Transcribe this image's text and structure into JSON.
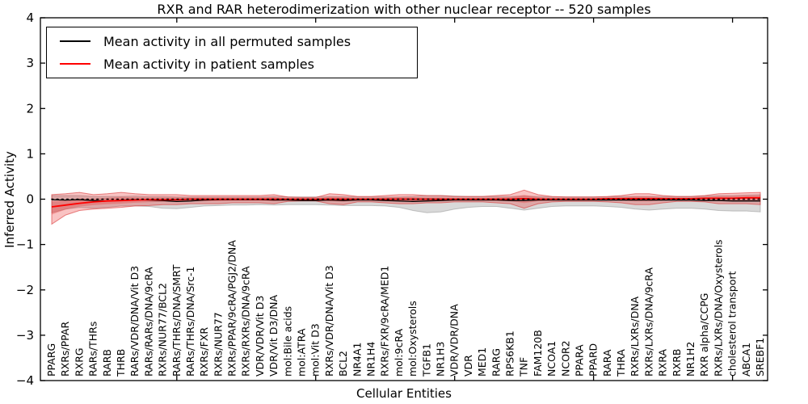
{
  "chart_data": {
    "type": "line",
    "title": "RXR and RAR heterodimerization with other nuclear receptor -- 520 samples",
    "xlabel": "Cellular Entities",
    "ylabel": "Inferred Activity",
    "ylim": [
      -4,
      4
    ],
    "ytick_labels": [
      "4",
      "3",
      "2",
      "1",
      "0",
      "−1",
      "−2",
      "−3",
      "−4"
    ],
    "xtick_positions": [
      10,
      20,
      30,
      40,
      50
    ],
    "grid": false,
    "legend_position": "upper left",
    "legend": [
      {
        "label": "Mean activity in all permuted samples",
        "color": "#000000"
      },
      {
        "label": "Mean activity in patient samples",
        "color": "#ff0000"
      }
    ],
    "colors": {
      "permuted_line": "#000000",
      "patient_line": "#ff0000",
      "zero_line": "#000000",
      "permuted_band_fill": "rgba(130,130,130,0.30)",
      "permuted_band_edge": "rgba(130,130,130,0.45)",
      "patient_band_fill": "rgba(232,40,40,0.28)",
      "patient_band_edge": "rgba(215,40,40,0.55)"
    },
    "entities": [
      "PPARG",
      "RXRs/PPAR",
      "RXRG",
      "RARs/THRs",
      "RARB",
      "THRB",
      "RARs/VDR/DNA/Vit D3",
      "RARs/RARs/DNA/9cRA",
      "RXRs/NUR77/BCL2",
      "RARs/THRs/DNA/SMRT",
      "RARs/THRs/DNA/Src-1",
      "RXRs/FXR",
      "RXRs/NUR77",
      "RXRs/PPAR/9cRA/PGJ2/DNA",
      "RXRs/RXRs/DNA/9cRA",
      "VDR/VDR/Vit D3",
      "VDR/Vit D3/DNA",
      "mol:Bile acids",
      "mol:ATRA",
      "mol:Vit D3",
      "RXRs/VDR/DNA/Vit D3",
      "BCL2",
      "NR4A1",
      "NR1H4",
      "RXRs/FXR/9cRA/MED1",
      "mol:9cRA",
      "mol:Oxysterols",
      "TGFB1",
      "NR1H3",
      "VDR/VDR/DNA",
      "VDR",
      "MED1",
      "RARG",
      "RPS6KB1",
      "TNF",
      "FAM120B",
      "NCOA1",
      "NCOR2",
      "PPARA",
      "PPARD",
      "RARA",
      "THRA",
      "RXRs/LXRs/DNA",
      "RXRs/LXRs/DNA/9cRA",
      "RXRA",
      "RXRB",
      "NR1H2",
      "RXR alpha/CCPG",
      "RXRs/LXRs/DNA/Oxysterols",
      "cholesterol transport",
      "ABCA1",
      "SREBF1"
    ],
    "permuted_mean": [
      -0.01,
      -0.02,
      -0.01,
      -0.03,
      -0.04,
      -0.02,
      -0.01,
      -0.02,
      -0.03,
      -0.05,
      -0.04,
      -0.02,
      -0.01,
      -0.01,
      -0.01,
      -0.01,
      -0.02,
      -0.02,
      -0.03,
      -0.03,
      -0.02,
      -0.03,
      -0.02,
      -0.02,
      -0.03,
      -0.04,
      -0.05,
      -0.04,
      -0.03,
      -0.02,
      -0.02,
      -0.02,
      -0.02,
      -0.03,
      -0.03,
      -0.02,
      -0.02,
      -0.02,
      -0.02,
      -0.02,
      -0.02,
      -0.02,
      -0.02,
      -0.02,
      -0.02,
      -0.02,
      -0.02,
      -0.03,
      -0.03,
      -0.04,
      -0.04,
      -0.04
    ],
    "patient_mean": [
      -0.17,
      -0.13,
      -0.09,
      -0.06,
      -0.04,
      -0.03,
      -0.02,
      -0.01,
      -0.01,
      -0.01,
      0,
      0,
      0,
      0,
      0,
      0,
      0,
      0,
      0,
      0,
      0,
      0,
      0,
      0,
      0,
      0,
      0,
      0,
      0,
      0,
      0,
      0,
      0,
      0,
      0.01,
      0,
      0,
      0,
      0,
      0,
      0.01,
      0.01,
      0.01,
      0.01,
      0.01,
      0.01,
      0.01,
      0.02,
      0.02,
      0.02,
      0.03,
      0.03
    ],
    "permuted_band": {
      "low": [
        -0.3,
        -0.22,
        -0.18,
        -0.2,
        -0.18,
        -0.15,
        -0.15,
        -0.16,
        -0.2,
        -0.21,
        -0.18,
        -0.15,
        -0.14,
        -0.13,
        -0.13,
        -0.12,
        -0.13,
        -0.12,
        -0.12,
        -0.12,
        -0.13,
        -0.14,
        -0.14,
        -0.14,
        -0.15,
        -0.18,
        -0.25,
        -0.3,
        -0.28,
        -0.22,
        -0.18,
        -0.16,
        -0.16,
        -0.2,
        -0.24,
        -0.2,
        -0.16,
        -0.15,
        -0.15,
        -0.15,
        -0.16,
        -0.18,
        -0.22,
        -0.24,
        -0.22,
        -0.2,
        -0.2,
        -0.22,
        -0.25,
        -0.26,
        -0.26,
        -0.28
      ],
      "high": [
        0.08,
        0.08,
        0.08,
        0.06,
        0.06,
        0.06,
        0.07,
        0.06,
        0.06,
        0.05,
        0.05,
        0.05,
        0.05,
        0.05,
        0.05,
        0.05,
        0.06,
        0.05,
        0.05,
        0.05,
        0.06,
        0.06,
        0.05,
        0.05,
        0.05,
        0.05,
        0.06,
        0.08,
        0.08,
        0.07,
        0.06,
        0.06,
        0.06,
        0.06,
        0.07,
        0.06,
        0.05,
        0.05,
        0.05,
        0.05,
        0.05,
        0.06,
        0.06,
        0.06,
        0.06,
        0.06,
        0.06,
        0.07,
        0.08,
        0.08,
        0.09,
        0.1
      ]
    },
    "patient_band": {
      "low": [
        -0.55,
        -0.35,
        -0.25,
        -0.22,
        -0.2,
        -0.18,
        -0.15,
        -0.14,
        -0.12,
        -0.12,
        -0.1,
        -0.1,
        -0.1,
        -0.08,
        -0.08,
        -0.08,
        -0.1,
        -0.05,
        -0.04,
        -0.04,
        -0.1,
        -0.12,
        -0.06,
        -0.06,
        -0.08,
        -0.1,
        -0.1,
        -0.08,
        -0.08,
        -0.06,
        -0.06,
        -0.06,
        -0.08,
        -0.1,
        -0.2,
        -0.1,
        -0.06,
        -0.05,
        -0.05,
        -0.05,
        -0.06,
        -0.08,
        -0.12,
        -0.12,
        -0.08,
        -0.05,
        -0.05,
        -0.06,
        -0.1,
        -0.1,
        -0.1,
        -0.12
      ],
      "high": [
        0.1,
        0.12,
        0.15,
        0.1,
        0.12,
        0.15,
        0.12,
        0.1,
        0.1,
        0.1,
        0.08,
        0.08,
        0.08,
        0.08,
        0.08,
        0.08,
        0.1,
        0.05,
        0.04,
        0.04,
        0.12,
        0.1,
        0.06,
        0.06,
        0.08,
        0.1,
        0.1,
        0.08,
        0.08,
        0.06,
        0.06,
        0.06,
        0.08,
        0.1,
        0.2,
        0.1,
        0.06,
        0.05,
        0.05,
        0.05,
        0.06,
        0.08,
        0.12,
        0.12,
        0.08,
        0.06,
        0.06,
        0.08,
        0.12,
        0.13,
        0.14,
        0.15
      ]
    }
  }
}
